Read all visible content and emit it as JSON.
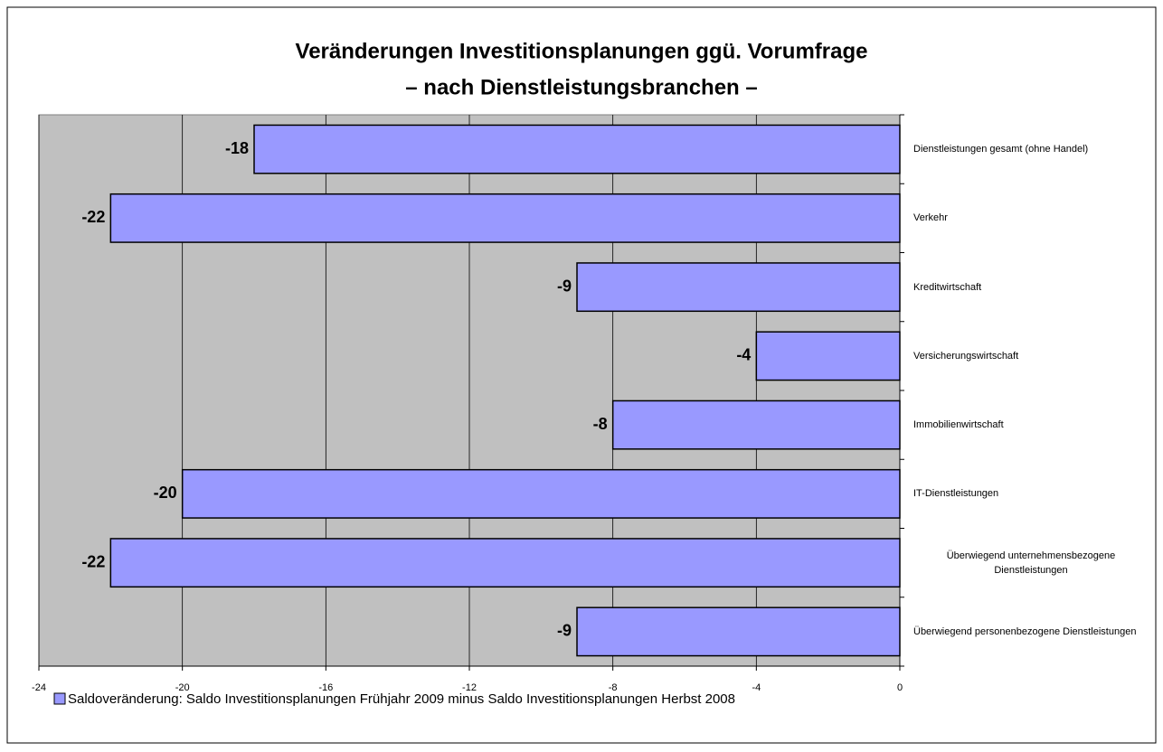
{
  "chart_data": {
    "type": "barh",
    "title": "Veränderungen Investitionsplanungen ggü. Vorumfrage",
    "subtitle": "– nach Dienstleistungsbranchen –",
    "categories": [
      "Dienstleistungen gesamt (ohne Handel)",
      "Verkehr",
      "Kreditwirtschaft",
      "Versicherungswirtschaft",
      "Immobilienwirtschaft",
      "IT-Dienstleistungen",
      "Überwiegend unternehmensbezogene Dienstleistungen",
      "Überwiegend personenbezogene Dienstleistungen"
    ],
    "series": [
      {
        "name": "Saldoveränderung: Saldo Investitionsplanungen Frühjahr 2009 minus Saldo Investitionsplanungen Herbst 2008",
        "color": "#9999ff",
        "values": [
          -18,
          -22,
          -9,
          -4,
          -8,
          -20,
          -22,
          -9
        ]
      }
    ],
    "xlim": [
      -24,
      0
    ],
    "xticks": [
      -24,
      -20,
      -16,
      -12,
      -8,
      -4,
      0
    ],
    "grid": true,
    "legend": "bottom-left"
  }
}
